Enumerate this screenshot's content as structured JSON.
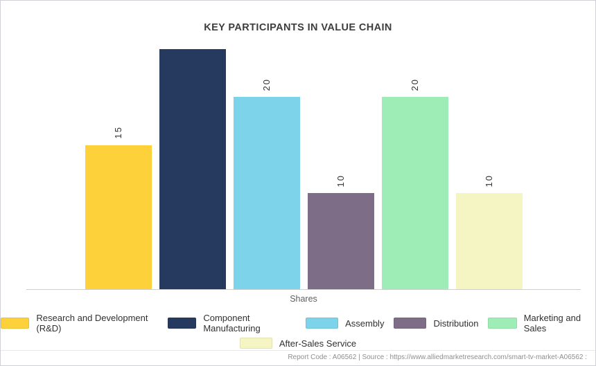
{
  "header": {
    "title": "KEY PARTICIPANTS IN VALUE CHAIN"
  },
  "chart_data": {
    "type": "bar",
    "title": "KEY PARTICIPANTS IN VALUE CHAIN",
    "xlabel": "Shares",
    "ylabel": "",
    "ylim": [
      0,
      25
    ],
    "grid": false,
    "legend_position": "bottom",
    "categories": [
      "Research and Development (R&D)",
      "Component Manufacturing",
      "Assembly",
      "Distribution",
      "Marketing and Sales",
      "After-Sales Service"
    ],
    "values": [
      15,
      25,
      20,
      10,
      20,
      10
    ],
    "colors": [
      "#FDD13A",
      "#253A5E",
      "#7CD3EA",
      "#7D6D86",
      "#9FEDB6",
      "#F5F5C3"
    ],
    "value_labels_visible": [
      true,
      false,
      true,
      true,
      true,
      true
    ],
    "value_label_rotation": -90,
    "legend_row_counts": [
      5,
      1
    ]
  },
  "footer": {
    "text": "Report Code : A06562  |  Source : https://www.alliedmarketresearch.com/smart-tv-market-A06562 :"
  }
}
